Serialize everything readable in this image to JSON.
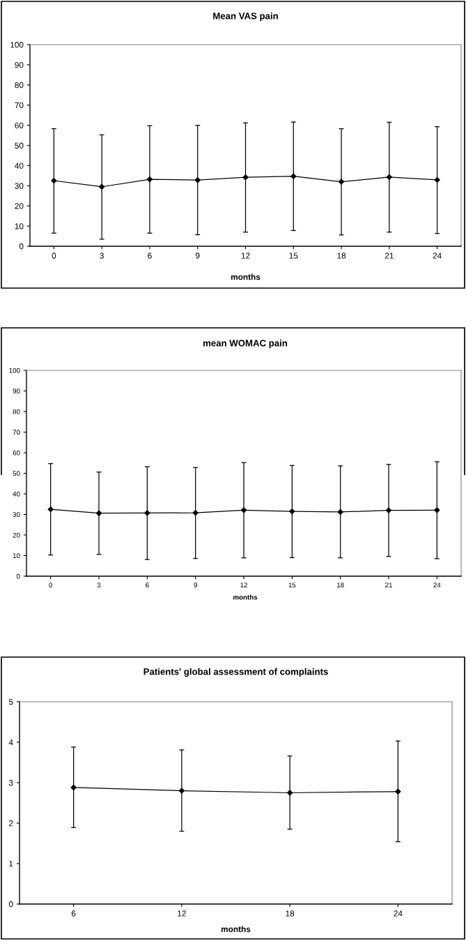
{
  "chart_data": [
    {
      "type": "line",
      "title": "Mean VAS pain",
      "xlabel": "months",
      "categories": [
        "0",
        "3",
        "6",
        "9",
        "12",
        "15",
        "18",
        "21",
        "24"
      ],
      "values": [
        32.5,
        29.5,
        33.2,
        32.8,
        34.2,
        34.7,
        32.0,
        34.3,
        32.9
      ],
      "errors": [
        [
          6.5,
          58.3
        ],
        [
          3.5,
          55.3
        ],
        [
          6.5,
          59.8
        ],
        [
          5.7,
          60.0
        ],
        [
          7.0,
          61.2
        ],
        [
          7.8,
          61.6
        ],
        [
          5.6,
          58.3
        ],
        [
          7.0,
          61.5
        ],
        [
          6.3,
          59.3
        ]
      ],
      "color": "#000000",
      "marker": "diamond",
      "ylim": [
        0,
        100
      ],
      "yticks": [
        0,
        10,
        20,
        30,
        40,
        50,
        60,
        70,
        80,
        90,
        100
      ],
      "grid": false,
      "legend": false
    },
    {
      "type": "line",
      "title": "mean WOMAC pain",
      "xlabel": "months",
      "categories": [
        "0",
        "3",
        "6",
        "9",
        "12",
        "15",
        "18",
        "21",
        "24"
      ],
      "values": [
        32.5,
        30.6,
        30.7,
        30.8,
        32.1,
        31.5,
        31.2,
        32.0,
        32.1
      ],
      "errors": [
        [
          10.3,
          54.7
        ],
        [
          10.6,
          50.6
        ],
        [
          8.1,
          53.2
        ],
        [
          8.6,
          52.8
        ],
        [
          8.9,
          55.2
        ],
        [
          9.0,
          53.8
        ],
        [
          8.9,
          53.6
        ],
        [
          9.6,
          54.3
        ],
        [
          8.5,
          55.6
        ]
      ],
      "color": "#000000",
      "marker": "diamond",
      "ylim": [
        0,
        100
      ],
      "yticks": [
        0,
        10,
        20,
        30,
        40,
        50,
        60,
        70,
        80,
        90,
        100
      ],
      "grid": false,
      "legend": false
    },
    {
      "type": "line",
      "title": "Patients' global assessment of complaints",
      "xlabel": "months",
      "categories": [
        "6",
        "12",
        "18",
        "24"
      ],
      "values": [
        2.88,
        2.8,
        2.75,
        2.78
      ],
      "errors": [
        [
          1.89,
          3.88
        ],
        [
          1.8,
          3.81
        ],
        [
          1.85,
          3.66
        ],
        [
          1.54,
          4.03
        ]
      ],
      "color": "#000000",
      "marker": "diamond",
      "ylim": [
        0,
        5
      ],
      "yticks": [
        0,
        1,
        2,
        3,
        4,
        5
      ],
      "grid": false,
      "legend": false
    }
  ]
}
